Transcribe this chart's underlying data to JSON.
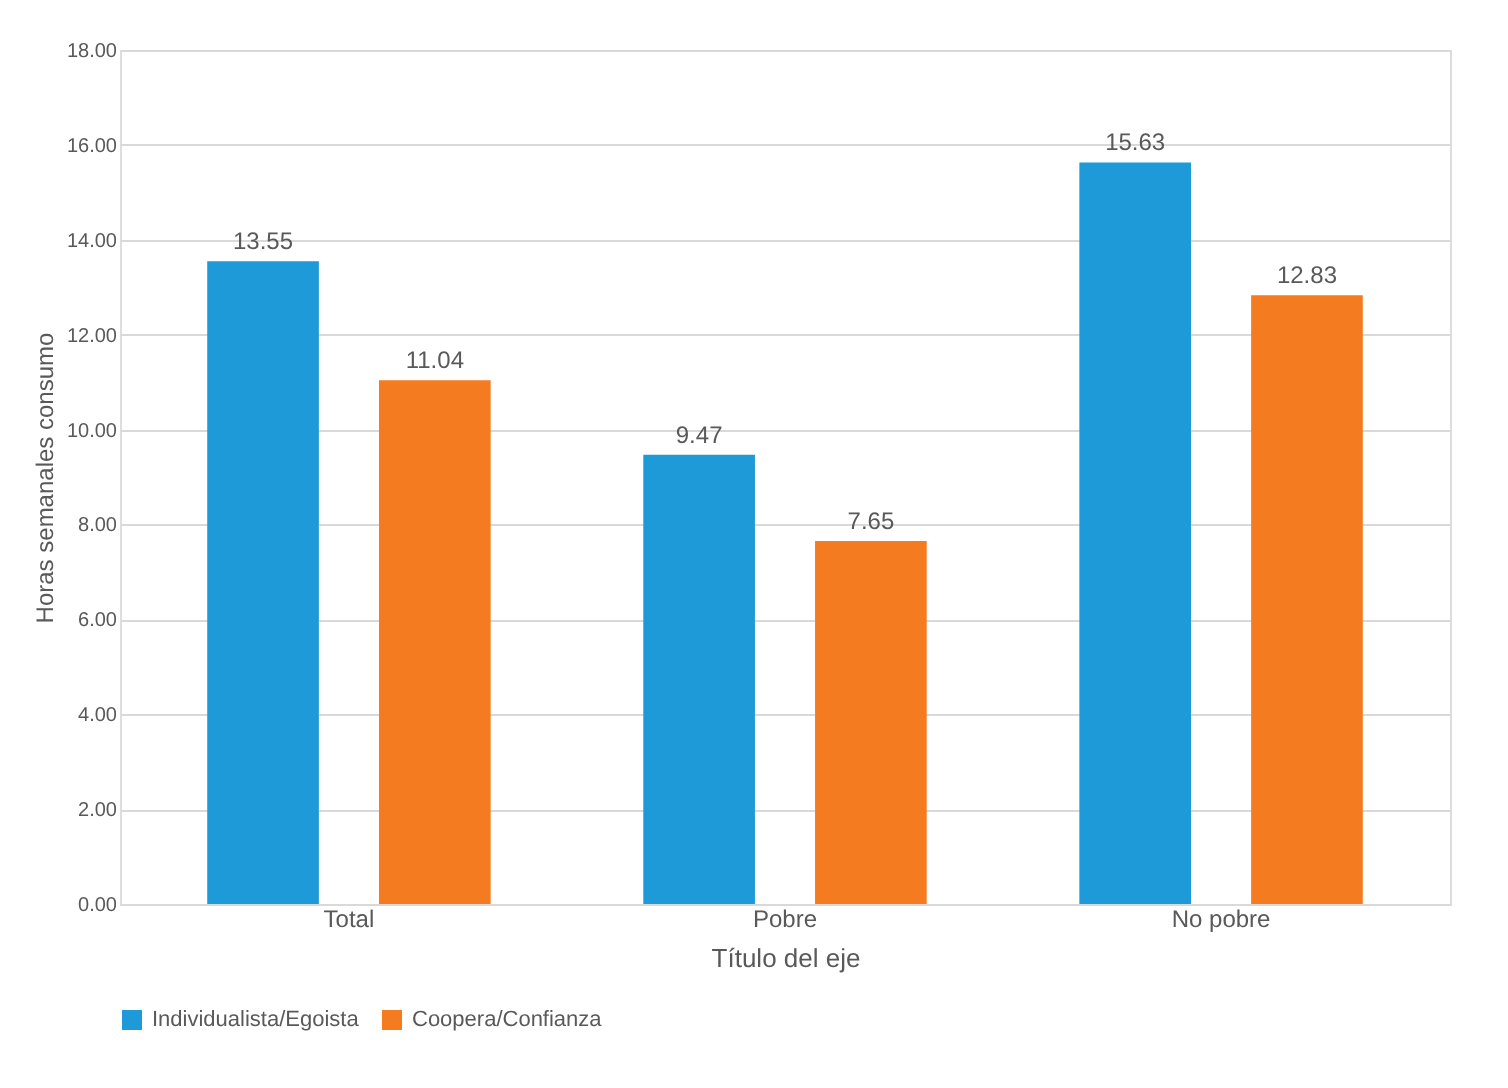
{
  "chart_data": {
    "type": "bar",
    "categories": [
      "Total",
      "Pobre",
      "No pobre"
    ],
    "series": [
      {
        "name": "Individualista/Egoista",
        "color": "#1f9ad8",
        "values": [
          13.55,
          9.47,
          15.63
        ]
      },
      {
        "name": "Coopera/Confianza",
        "color": "#f47b20",
        "values": [
          11.04,
          7.65,
          12.83
        ]
      }
    ],
    "xlabel": "Título del eje",
    "ylabel": "Horas semanales consumo",
    "ylim": [
      0,
      18
    ],
    "yticks": [
      {
        "value": 0,
        "label": "0.00"
      },
      {
        "value": 2,
        "label": "2.00"
      },
      {
        "value": 4,
        "label": "4.00"
      },
      {
        "value": 6,
        "label": "6.00"
      },
      {
        "value": 8,
        "label": "8.00"
      },
      {
        "value": 10,
        "label": "10.00"
      },
      {
        "value": 12,
        "label": "12.00"
      },
      {
        "value": 14,
        "label": "14.00"
      },
      {
        "value": 16,
        "label": "16.00"
      },
      {
        "value": 18,
        "label": "18.00"
      }
    ],
    "grid": "y",
    "legend": "bottom",
    "data_labels": true
  }
}
